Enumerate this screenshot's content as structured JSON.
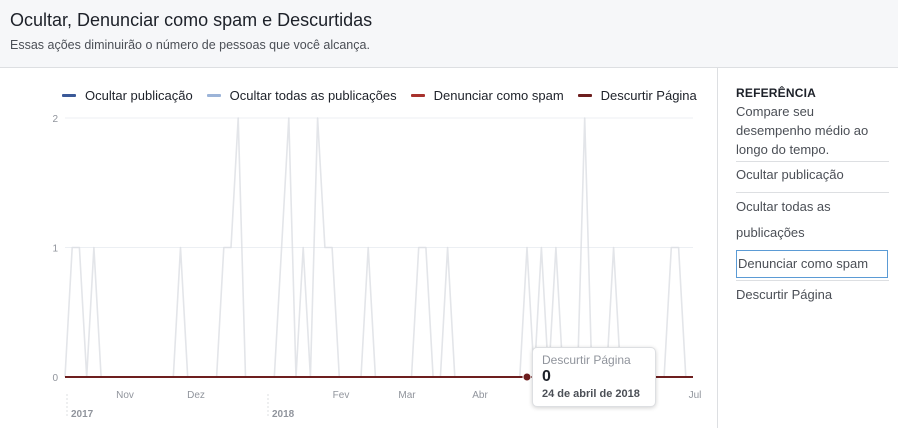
{
  "header": {
    "title": "Ocultar, Denunciar como spam e Descurtidas",
    "subtitle": "Essas ações diminuirão o número de pessoas que você alcança."
  },
  "legend": [
    {
      "label": "Ocultar publicação",
      "color": "#3b5998"
    },
    {
      "label": "Ocultar todas as publicações",
      "color": "#9cb4d8"
    },
    {
      "label": "Denunciar como spam",
      "color": "#a8322d"
    },
    {
      "label": "Descurtir Página",
      "color": "#6d1e1e"
    }
  ],
  "chart_data": {
    "type": "line",
    "ylim": [
      0,
      2
    ],
    "yticks": [
      "0",
      "1",
      "2"
    ],
    "xticks": [
      "Nov",
      "Dez",
      "Fev",
      "Mar",
      "Abr",
      "Jul"
    ],
    "year_labels": [
      "2017",
      "2018"
    ],
    "grid": true,
    "legend_position": "top",
    "series": [
      {
        "name": "Ocultar publicação",
        "color": "#3b5998",
        "values": [
          0,
          0,
          0,
          0,
          0,
          0,
          0,
          0,
          0,
          0,
          0,
          0,
          0,
          0,
          0,
          0,
          0,
          0,
          0,
          0,
          0,
          0,
          0,
          0,
          0,
          0,
          0,
          0,
          0,
          0,
          0,
          0,
          0,
          0,
          0,
          0,
          0,
          0,
          0,
          0,
          0,
          0,
          0,
          0,
          0,
          0,
          0,
          0,
          0,
          0,
          0,
          0,
          0,
          0,
          0,
          0,
          0,
          0,
          0,
          0,
          0,
          0,
          0,
          0,
          0,
          0,
          0,
          0,
          0,
          0,
          0,
          0,
          0,
          0,
          0,
          0,
          0,
          0,
          0,
          0,
          0,
          0,
          0,
          0,
          0,
          0,
          0,
          0
        ]
      },
      {
        "name": "Ocultar todas as publicações",
        "color": "#9cb4d8",
        "values": [
          0,
          1,
          1,
          0,
          1,
          0,
          0,
          0,
          0,
          0,
          0,
          0,
          0,
          0,
          0,
          0,
          1,
          0,
          0,
          0,
          0,
          0,
          1,
          1,
          2,
          0,
          0,
          0,
          0,
          0,
          1,
          2,
          0,
          1,
          0,
          2,
          1,
          1,
          0,
          0,
          0,
          0,
          1,
          0,
          0,
          0,
          0,
          0,
          0,
          1,
          1,
          0,
          0,
          1,
          0,
          0,
          0,
          0,
          0,
          0,
          0,
          0,
          0,
          0,
          1,
          0,
          1,
          0,
          1,
          0,
          0,
          0,
          2,
          0,
          0,
          0,
          1,
          0,
          0,
          0,
          0,
          0,
          0,
          0,
          1,
          1,
          0,
          0
        ]
      },
      {
        "name": "Denunciar como spam",
        "color": "#a8322d",
        "values": [
          0,
          0,
          0,
          0,
          0,
          0,
          0,
          0,
          0,
          0,
          0,
          0,
          0,
          0,
          0,
          0,
          0,
          0,
          0,
          0,
          0,
          0,
          0,
          0,
          0,
          0,
          0,
          0,
          0,
          0,
          0,
          0,
          0,
          0,
          0,
          0,
          0,
          0,
          0,
          0,
          0,
          0,
          0,
          0,
          0,
          0,
          0,
          0,
          0,
          0,
          0,
          0,
          0,
          0,
          0,
          0,
          0,
          0,
          0,
          0,
          0,
          0,
          0,
          0,
          0,
          0,
          0,
          0,
          0,
          0,
          0,
          0,
          0,
          0,
          0,
          0,
          0,
          0,
          0,
          0,
          0,
          0,
          0,
          0,
          0,
          0,
          0,
          0
        ]
      },
      {
        "name": "Descurtir Página",
        "color": "#6d1e1e",
        "values": [
          0,
          0,
          0,
          0,
          0,
          0,
          0,
          0,
          0,
          0,
          0,
          0,
          0,
          0,
          0,
          0,
          0,
          0,
          0,
          0,
          0,
          0,
          0,
          0,
          0,
          0,
          0,
          0,
          0,
          0,
          0,
          0,
          0,
          0,
          0,
          0,
          0,
          0,
          0,
          0,
          0,
          0,
          0,
          0,
          0,
          0,
          0,
          0,
          0,
          0,
          0,
          0,
          0,
          0,
          0,
          0,
          0,
          0,
          0,
          0,
          0,
          0,
          0,
          0,
          0,
          0,
          0,
          0,
          0,
          0,
          0,
          0,
          0,
          0,
          0,
          0,
          0,
          0,
          0,
          0,
          0,
          0,
          0,
          0,
          0,
          0,
          0,
          0
        ]
      }
    ],
    "highlight": {
      "series": "Descurtir Página",
      "index": 64
    }
  },
  "tooltip": {
    "series": "Descurtir Página",
    "value": "0",
    "date": "24 de abril de 2018"
  },
  "sidebar": {
    "title": "REFERÊNCIA",
    "description": "Compare seu desempenho médio ao longo do tempo.",
    "items": [
      {
        "label": "Ocultar publicação"
      },
      {
        "label": "Ocultar todas as publicações"
      },
      {
        "label": "Denunciar como spam"
      },
      {
        "label": "Descurtir Página"
      }
    ],
    "selected_index": 2
  }
}
